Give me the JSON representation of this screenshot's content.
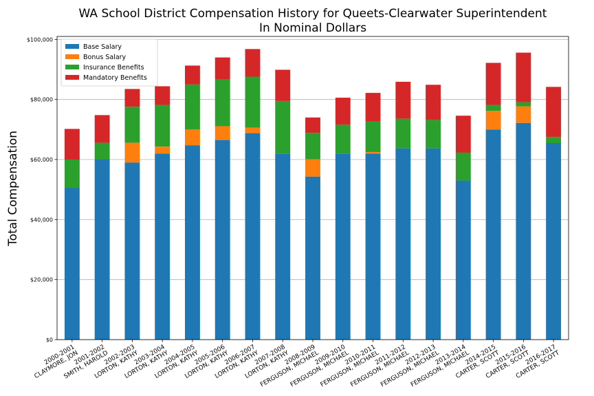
{
  "chart_data": {
    "type": "bar",
    "stacked": true,
    "title": "WA School District Compensation History for Queets-Clearwater Superintendent",
    "subtitle": "In Nominal Dollars",
    "xlabel": "",
    "ylabel": "Total Compensation",
    "ylim": [
      0,
      101000
    ],
    "yticks": [
      0,
      20000,
      40000,
      60000,
      80000,
      100000
    ],
    "ytick_labels": [
      "$0",
      "$20,000",
      "$40,000",
      "$60,000",
      "$80,000",
      "$100,000"
    ],
    "grid": "horizontal",
    "legend_position": "top-left",
    "categories": [
      {
        "year": "2000-2001",
        "name": "CLAYMORE, JON"
      },
      {
        "year": "2001-2002",
        "name": "SMITH, HAROLD"
      },
      {
        "year": "2002-2003",
        "name": "LORTON, KATHY"
      },
      {
        "year": "2003-2004",
        "name": "LORTON, KATHY"
      },
      {
        "year": "2004-2005",
        "name": "LORTON, KATHY"
      },
      {
        "year": "2005-2006",
        "name": "LORTON, KATHY"
      },
      {
        "year": "2006-2007",
        "name": "LORTON, KATHY"
      },
      {
        "year": "2007-2008",
        "name": "LORTON, KATHY"
      },
      {
        "year": "2008-2009",
        "name": "FERGUSON, MICHAEL"
      },
      {
        "year": "2009-2010",
        "name": "FERGUSON, MICHAEL"
      },
      {
        "year": "2010-2011",
        "name": "FERGUSON, MICHAEL"
      },
      {
        "year": "2011-2012",
        "name": "FERGUSON, MICHAEL"
      },
      {
        "year": "2012-2013",
        "name": "FERGUSON, MICHAEL"
      },
      {
        "year": "2013-2014",
        "name": "FERGUSON, MICHAEL"
      },
      {
        "year": "2014-2015",
        "name": "CARTER, SCOTT"
      },
      {
        "year": "2015-2016",
        "name": "CARTER, SCOTT"
      },
      {
        "year": "2016-2017",
        "name": "CARTER, SCOTT"
      }
    ],
    "series": [
      {
        "name": "Base Salary",
        "color": "#1f77b4",
        "values": [
          50500,
          60000,
          59000,
          62000,
          64700,
          66500,
          68800,
          62000,
          54300,
          62000,
          62000,
          63700,
          63700,
          53000,
          70000,
          72200,
          65500
        ]
      },
      {
        "name": "Bonus Salary",
        "color": "#ff7f0e",
        "values": [
          0,
          0,
          6600,
          2300,
          5300,
          4600,
          1800,
          0,
          5800,
          0,
          500,
          0,
          0,
          0,
          6200,
          5500,
          0
        ]
      },
      {
        "name": "Insurance Benefits",
        "color": "#2ca02c",
        "values": [
          9500,
          5600,
          12000,
          13900,
          15000,
          15600,
          17000,
          17500,
          8800,
          9600,
          10200,
          9900,
          9500,
          9300,
          2000,
          1400,
          2000
        ]
      },
      {
        "name": "Mandatory Benefits",
        "color": "#d62728",
        "values": [
          10200,
          9200,
          5900,
          6200,
          6300,
          7300,
          9200,
          10400,
          5100,
          9000,
          9500,
          12300,
          11700,
          12300,
          14000,
          16500,
          16700
        ]
      }
    ]
  }
}
